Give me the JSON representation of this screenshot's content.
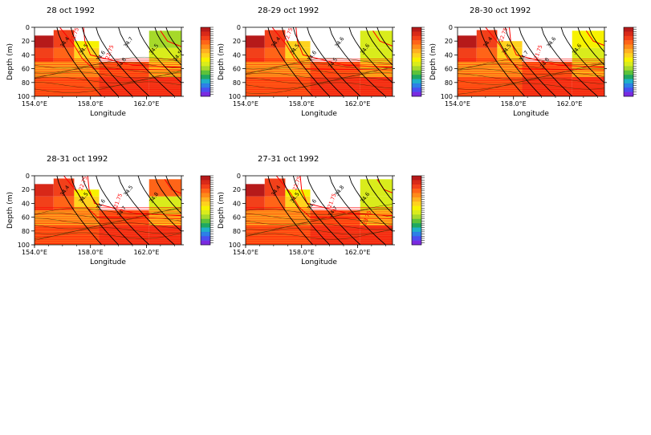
{
  "colors": {
    "temperature_scale": [
      "#7a2be0",
      "#4a4ef0",
      "#2c7fe6",
      "#1fb0c8",
      "#1fa860",
      "#5cc23a",
      "#a6d92a",
      "#d9ec1c",
      "#f7f200",
      "#ffd21e",
      "#ffb020",
      "#ff8a1a",
      "#ff6418",
      "#f2401a",
      "#d82818",
      "#b61a1a"
    ],
    "isopycnal_line": "#ff0000",
    "isohaline_line": "#000000"
  },
  "chart_data": [
    {
      "type": "heatmap",
      "title": "28 oct 1992",
      "xlabel": "Longitude",
      "ylabel": "Depth (m)",
      "x_ticks": [
        "154.0°E",
        "158.0°E",
        "162.0°E"
      ],
      "y_ticks": [
        "0",
        "20",
        "40",
        "60",
        "80",
        "100"
      ],
      "xlim": [
        154.0,
        164.5
      ],
      "ylim": [
        100,
        0
      ],
      "contour_labels": [
        "34.4",
        "34.5",
        "34.6",
        "34.8",
        "34.7",
        "34.5",
        "34.5",
        "34.6"
      ],
      "isopycnal_labels": [
        "21.75",
        "22.75"
      ]
    },
    {
      "type": "heatmap",
      "title": "28-29 oct 1992",
      "xlabel": "Longitude",
      "ylabel": "Depth (m)",
      "x_ticks": [
        "154.0°E",
        "158.0°E",
        "162.0°E"
      ],
      "y_ticks": [
        "0",
        "20",
        "40",
        "60",
        "80",
        "100"
      ],
      "xlim": [
        154.0,
        164.5
      ],
      "ylim": [
        100,
        0
      ],
      "contour_labels": [
        "34.4",
        "34.5",
        "34.6",
        "34.5",
        "34.6",
        "34.6"
      ],
      "isopycnal_labels": [
        "22.75"
      ]
    },
    {
      "type": "heatmap",
      "title": "28-30 oct 1992",
      "xlabel": "Longitude",
      "ylabel": "Depth (m)",
      "x_ticks": [
        "154.0°E",
        "158.0°E",
        "162.0°E"
      ],
      "y_ticks": [
        "0",
        "20",
        "40",
        "60",
        "80",
        "100"
      ],
      "xlim": [
        154.0,
        164.5
      ],
      "ylim": [
        100,
        0
      ],
      "contour_labels": [
        "34.4",
        "34.5",
        "34.7",
        "34.8",
        "34.6",
        "34.6"
      ],
      "isopycnal_labels": [
        "22.75",
        "21.75"
      ]
    },
    {
      "type": "heatmap",
      "title": "28-31 oct 1992",
      "xlabel": "Longitude",
      "ylabel": "Depth (m)",
      "x_ticks": [
        "154.0°E",
        "158.0°E",
        "162.0°E"
      ],
      "y_ticks": [
        "0",
        "20",
        "40",
        "60",
        "80",
        "100"
      ],
      "xlim": [
        154.0,
        164.5
      ],
      "ylim": [
        100,
        0
      ],
      "contour_labels": [
        "34.4",
        "34.5",
        "34.6",
        "34.7",
        "34.5",
        "34.8"
      ],
      "isopycnal_labels": [
        "22.75",
        "21.75"
      ]
    },
    {
      "type": "heatmap",
      "title": "27-31 oct 1992",
      "xlabel": "Longitude",
      "ylabel": "Depth (m)",
      "x_ticks": [
        "154.0°E",
        "158.0°E",
        "162.0°E"
      ],
      "y_ticks": [
        "0",
        "20",
        "40",
        "60",
        "80",
        "100"
      ],
      "xlim": [
        154.0,
        164.5
      ],
      "ylim": [
        100,
        0
      ],
      "contour_labels": [
        "34.4",
        "34.5",
        "34.6",
        "34.7",
        "34.8",
        "34.6"
      ],
      "isopycnal_labels": [
        "22.75",
        "21.75",
        "23.75"
      ]
    }
  ]
}
